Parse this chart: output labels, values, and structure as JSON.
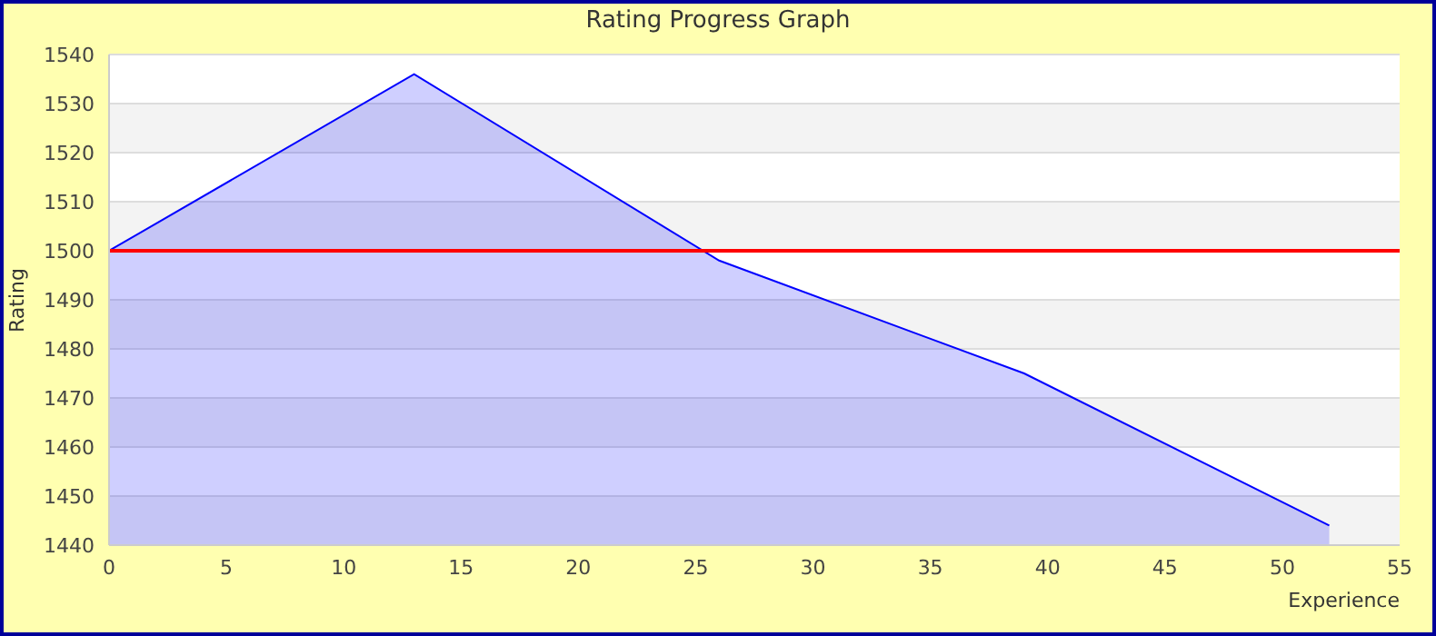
{
  "chart_data": {
    "type": "area",
    "title": "Rating Progress Graph",
    "xlabel": "Experience",
    "ylabel": "Rating",
    "x": [
      0,
      13,
      26,
      39,
      52
    ],
    "series": [
      {
        "color": "#0000ff",
        "values": [
          1500,
          1536,
          1498,
          1475,
          1444
        ]
      }
    ],
    "xlim": [
      0,
      55
    ],
    "xticks": [
      0,
      5,
      10,
      15,
      20,
      25,
      30,
      35,
      40,
      45,
      50,
      55
    ],
    "ylim": [
      1440,
      1540
    ],
    "yticks": [
      1440,
      1450,
      1460,
      1470,
      1480,
      1490,
      1500,
      1510,
      1520,
      1530,
      1540
    ],
    "ref_lines": [
      {
        "axis": "y",
        "value": 1500,
        "color": "#ff0000"
      }
    ],
    "grid": "y"
  }
}
